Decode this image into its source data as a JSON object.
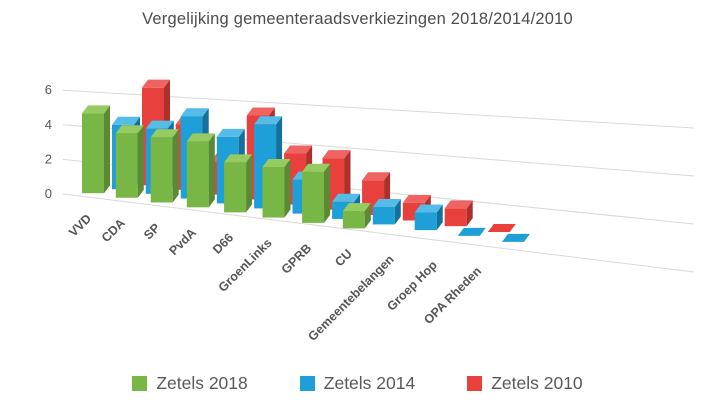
{
  "title": "Vergelijking gemeenteraadsverkiezingen 2018/2014/2010",
  "chart_data": {
    "type": "bar",
    "style": "3d-clustered-column",
    "title": "Vergelijking gemeenteraadsverkiezingen 2018/2014/2010",
    "categories": [
      "VVD",
      "CDA",
      "SP",
      "PvdA",
      "D66",
      "GroenLinks",
      "GPRB",
      "CU",
      "Gemeentebelangen",
      "Groep Hop",
      "OPA Rheden"
    ],
    "series": [
      {
        "name": "Zetels 2018",
        "depth_row": "front",
        "color": "#78B746",
        "color_side": "#5A8A34",
        "color_top": "#96CB62",
        "values": [
          5,
          4,
          4,
          4,
          3,
          3,
          3,
          1,
          null,
          null,
          null
        ]
      },
      {
        "name": "Zetels 2014",
        "depth_row": "middle",
        "color": "#1F9FD8",
        "color_side": "#15719B",
        "color_top": "#55BCE8",
        "values": [
          4,
          4,
          5,
          4,
          5,
          2,
          1,
          1,
          1,
          0,
          0
        ]
      },
      {
        "name": "Zetels 2010",
        "depth_row": "back",
        "color": "#E8413D",
        "color_side": "#AE302C",
        "color_top": "#EF6360",
        "values": [
          6,
          4,
          2,
          5,
          3,
          3,
          2,
          1,
          1,
          0,
          null
        ]
      }
    ],
    "ylabel": "",
    "xlabel": "",
    "ylim": [
      0,
      6
    ],
    "y_ticks": [
      0,
      2,
      4,
      6
    ],
    "grid": true,
    "zero_values_rendered_as": "flat floor tile",
    "legend_position": "bottom"
  },
  "axis": {
    "tick_color": "#595959",
    "gridline_color": "#d9d9d9",
    "label_color": "#555555"
  }
}
